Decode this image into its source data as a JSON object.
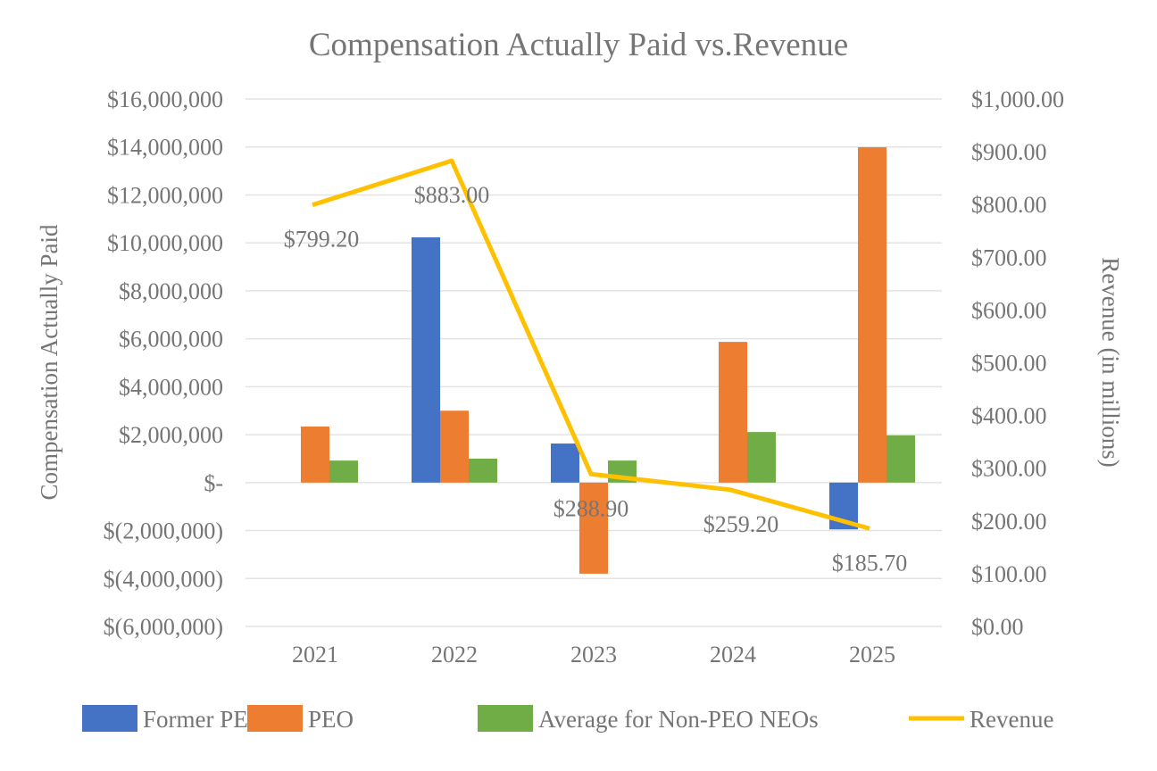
{
  "chart_data": {
    "type": "bar+line",
    "title": "Compensation Actually Paid vs.Revenue",
    "categories": [
      "2021",
      "2022",
      "2023",
      "2024",
      "2025"
    ],
    "ylabel": "Compensation Actually Paid",
    "y2label": "Revenue  (in millions)",
    "ylim": [
      -6000000,
      16000000
    ],
    "y2lim": [
      0,
      1000
    ],
    "yticks": [
      "$(6,000,000)",
      "$(4,000,000)",
      "$(2,000,000)",
      "$-",
      "$2,000,000",
      "$4,000,000",
      "$6,000,000",
      "$8,000,000",
      "$10,000,000",
      "$12,000,000",
      "$14,000,000",
      "$16,000,000"
    ],
    "y2ticks": [
      "$0.00",
      "$100.00",
      "$200.00",
      "$300.00",
      "$400.00",
      "$500.00",
      "$600.00",
      "$700.00",
      "$800.00",
      "$900.00",
      "$1,000.00"
    ],
    "grid": true,
    "legend_position": "bottom",
    "series": [
      {
        "name": "Former PEO",
        "type": "bar",
        "color": "#4472C4",
        "values": [
          null,
          10230000,
          1630000,
          null,
          -1950000
        ]
      },
      {
        "name": "PEO",
        "type": "bar",
        "color": "#ED7D31",
        "values": [
          2340000,
          3000000,
          -3800000,
          5870000,
          13990000
        ]
      },
      {
        "name": "Average for Non-PEO NEOs",
        "type": "bar",
        "color": "#70AD47",
        "values": [
          920000,
          1000000,
          920000,
          2110000,
          1970000
        ]
      },
      {
        "name": "Revenue",
        "type": "line",
        "axis": "right",
        "color": "#FFC000",
        "values": [
          799.2,
          883.0,
          288.9,
          259.2,
          185.7
        ],
        "labels": [
          "$799.20",
          "$883.00",
          "$288.90",
          "$259.20",
          "$185.70"
        ]
      }
    ]
  }
}
